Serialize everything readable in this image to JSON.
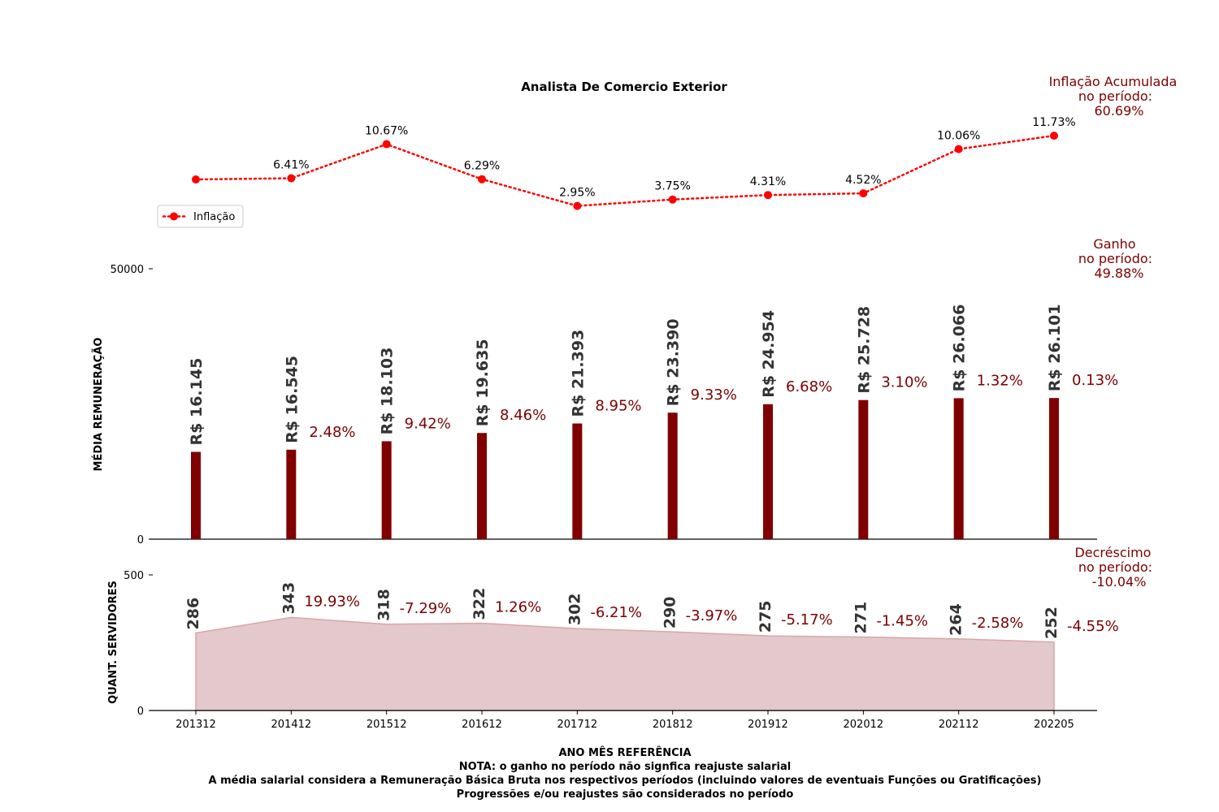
{
  "chart_data": {
    "title": "Analista De Comercio Exterior",
    "x": [
      "201312",
      "201412",
      "201512",
      "201612",
      "201712",
      "201812",
      "201912",
      "202012",
      "202112",
      "202205"
    ],
    "xlabel": "ANO MÊS REFERÊNCIA",
    "notes": [
      "NOTA: o ganho no período não signfica reajuste salarial",
      "A média salarial considera a Remuneração Básica Bruta nos respectivos períodos (incluindo valores de eventuais Funções ou Gratificações)",
      "Progressões e/ou reajustes são considerados no período"
    ],
    "inflation": {
      "type": "line",
      "series_name": "Inflação",
      "values": [
        null,
        6.41,
        10.67,
        6.29,
        2.95,
        3.75,
        4.31,
        4.52,
        10.06,
        11.73
      ],
      "labels": [
        "",
        "6.41%",
        "10.67%",
        "6.29%",
        "2.95%",
        "3.75%",
        "4.31%",
        "4.52%",
        "10.06%",
        "11.73%"
      ],
      "color": "#ff0000",
      "summary": [
        "Inflação Acumulada",
        "no período:",
        "60.69%"
      ]
    },
    "salary": {
      "type": "bar",
      "ylabel": "MÉDIA REMUNERAÇÃO",
      "ylim": [
        0,
        50000
      ],
      "yticks": [
        "0",
        "50000"
      ],
      "values": [
        16145,
        16545,
        18103,
        19635,
        21393,
        23390,
        24954,
        25728,
        26066,
        26101
      ],
      "labels": [
        "R$ 16.145",
        "R$ 16.545",
        "R$ 18.103",
        "R$ 19.635",
        "R$ 21.393",
        "R$ 23.390",
        "R$ 24.954",
        "R$ 25.728",
        "R$ 26.066",
        "R$ 26.101"
      ],
      "changes": [
        "",
        "2.48%",
        "9.42%",
        "8.46%",
        "8.95%",
        "9.33%",
        "6.68%",
        "3.10%",
        "1.32%",
        "0.13%"
      ],
      "color": "#800000",
      "summary": [
        "Ganho",
        "no período:",
        "49.88%"
      ]
    },
    "servers": {
      "type": "area",
      "ylabel": "QUANT. SERVIDORES",
      "ylim": [
        0,
        500
      ],
      "yticks": [
        "0",
        "500"
      ],
      "values": [
        286,
        343,
        318,
        322,
        302,
        290,
        275,
        271,
        264,
        252
      ],
      "changes": [
        "19.93%",
        "-7.29%",
        "1.26%",
        "-6.21%",
        "-3.97%",
        "-5.17%",
        "-1.45%",
        "-2.58%",
        "-4.55%"
      ],
      "fill": "#e3c9cb",
      "stroke": "#d9a5a8",
      "summary": [
        "Decréscimo",
        "no período:",
        "-10.04%"
      ]
    },
    "colors": {
      "annotation": "#7b0000",
      "value_label": "#333333",
      "text": "#000000"
    }
  }
}
